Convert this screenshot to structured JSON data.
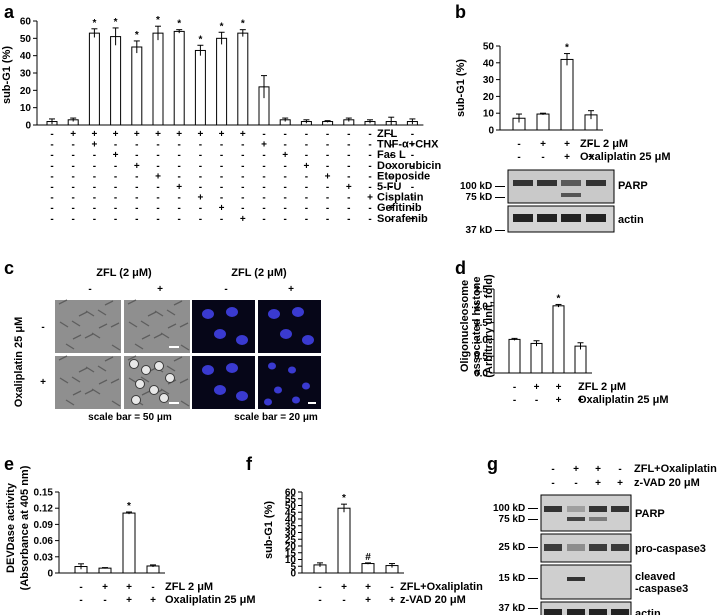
{
  "panels": {
    "a": {
      "letter": "a"
    },
    "b": {
      "letter": "b"
    },
    "c": {
      "letter": "c"
    },
    "d": {
      "letter": "d"
    },
    "e": {
      "letter": "e"
    },
    "f": {
      "letter": "f"
    },
    "g": {
      "letter": "g"
    }
  },
  "chart_data": [
    {
      "id": "a",
      "type": "bar",
      "ylabel": "sub-G1 (%)",
      "ylim": [
        0,
        60
      ],
      "yticks": [
        0,
        10,
        20,
        30,
        40,
        50,
        60
      ],
      "values": [
        2,
        3,
        53,
        51,
        45,
        53,
        54,
        43,
        50,
        53,
        22,
        3,
        2,
        2,
        3,
        2,
        2,
        2
      ],
      "errors": [
        1.5,
        1,
        2.5,
        5,
        3.5,
        4,
        1,
        3,
        3.5,
        2,
        6.5,
        1,
        1,
        0.5,
        1,
        1,
        2.5,
        1.5
      ],
      "stars": [
        false,
        false,
        true,
        true,
        true,
        true,
        true,
        true,
        true,
        true,
        false,
        false,
        false,
        false,
        false,
        false,
        false,
        false
      ],
      "star_symbol": "*",
      "rows": [
        {
          "label": "ZFL",
          "signs": [
            "-",
            "+",
            "+",
            "+",
            "+",
            "+",
            "+",
            "+",
            "+",
            "+",
            "-",
            "-",
            "-",
            "-",
            "-",
            "-",
            "-",
            "-"
          ]
        },
        {
          "label": "TNF-α+CHX",
          "signs": [
            "-",
            "-",
            "+",
            "-",
            "-",
            "-",
            "-",
            "-",
            "-",
            "-",
            "+",
            "-",
            "-",
            "-",
            "-",
            "-",
            "-",
            "-"
          ]
        },
        {
          "label": "Fas L",
          "signs": [
            "-",
            "-",
            "-",
            "+",
            "-",
            "-",
            "-",
            "-",
            "-",
            "-",
            "-",
            "+",
            "-",
            "-",
            "-",
            "-",
            "-",
            "-"
          ]
        },
        {
          "label": "Doxorubicin",
          "signs": [
            "-",
            "-",
            "-",
            "-",
            "+",
            "-",
            "-",
            "-",
            "-",
            "-",
            "-",
            "-",
            "+",
            "-",
            "-",
            "-",
            "-",
            "-"
          ]
        },
        {
          "label": "Etoposide",
          "signs": [
            "-",
            "-",
            "-",
            "-",
            "-",
            "+",
            "-",
            "-",
            "-",
            "-",
            "-",
            "-",
            "-",
            "+",
            "-",
            "-",
            "-",
            "-"
          ]
        },
        {
          "label": "5-FU",
          "signs": [
            "-",
            "-",
            "-",
            "-",
            "-",
            "-",
            "+",
            "-",
            "-",
            "-",
            "-",
            "-",
            "-",
            "-",
            "+",
            "-",
            "-",
            "-"
          ]
        },
        {
          "label": "Cisplatin",
          "signs": [
            "-",
            "-",
            "-",
            "-",
            "-",
            "-",
            "-",
            "+",
            "-",
            "-",
            "-",
            "-",
            "-",
            "-",
            "-",
            "+",
            "-",
            "-"
          ]
        },
        {
          "label": "Gefitinib",
          "signs": [
            "-",
            "-",
            "-",
            "-",
            "-",
            "-",
            "-",
            "-",
            "+",
            "-",
            "-",
            "-",
            "-",
            "-",
            "-",
            "-",
            "+",
            "-"
          ]
        },
        {
          "label": "Sorafenib",
          "signs": [
            "-",
            "-",
            "-",
            "-",
            "-",
            "-",
            "-",
            "-",
            "-",
            "+",
            "-",
            "-",
            "-",
            "-",
            "-",
            "-",
            "-",
            "+"
          ]
        }
      ]
    },
    {
      "id": "b",
      "type": "bar",
      "ylabel": "sub-G1 (%)",
      "ylim": [
        0,
        50
      ],
      "yticks": [
        0,
        10,
        20,
        30,
        40,
        50
      ],
      "values": [
        7,
        9.5,
        42,
        9
      ],
      "errors": [
        2.5,
        0.5,
        3.5,
        2.5
      ],
      "stars": [
        false,
        false,
        true,
        false
      ],
      "star_symbol": "*",
      "rows": [
        {
          "label": "ZFL 2 μM",
          "signs": [
            "-",
            "+",
            "+",
            "-"
          ]
        },
        {
          "label": "Oxaliplatin 25 μM",
          "signs": [
            "-",
            "-",
            "+",
            "+"
          ]
        }
      ]
    },
    {
      "id": "d",
      "type": "bar",
      "ylabel": "Oligonucleosome associated histone (Arbitrary unit, fold)",
      "ylim": [
        0,
        2.5
      ],
      "yticks": [
        "0.0",
        "0.5",
        "1.0",
        "1.5",
        "2.0",
        "2.5"
      ],
      "values": [
        1.0,
        0.88,
        2.0,
        0.8
      ],
      "errors": [
        0.03,
        0.08,
        0.04,
        0.1
      ],
      "stars": [
        false,
        false,
        true,
        false
      ],
      "star_symbol": "*",
      "rows": [
        {
          "label": "ZFL 2 μM",
          "signs": [
            "-",
            "+",
            "+",
            "-"
          ]
        },
        {
          "label": "Oxaliplatin 25 μM",
          "signs": [
            "-",
            "-",
            "+",
            "+"
          ]
        }
      ]
    },
    {
      "id": "e",
      "type": "bar",
      "ylabel": "DEVDase activity (Absorbance at 405 nm)",
      "ylim": [
        0,
        0.15
      ],
      "yticks": [
        "0",
        "0.03",
        "0.06",
        "0.09",
        "0.12",
        "0.15"
      ],
      "values": [
        0.012,
        0.009,
        0.111,
        0.013
      ],
      "errors": [
        0.005,
        0.001,
        0.002,
        0.002
      ],
      "stars": [
        false,
        false,
        true,
        false
      ],
      "star_symbol": "*",
      "rows": [
        {
          "label": "ZFL 2 μM",
          "signs": [
            "-",
            "+",
            "+",
            "-"
          ]
        },
        {
          "label": "Oxaliplatin 25 μM",
          "signs": [
            "-",
            "-",
            "+",
            "+"
          ]
        }
      ]
    },
    {
      "id": "f",
      "type": "bar",
      "ylabel": "sub-G1 (%)",
      "ylim": [
        0,
        60
      ],
      "yticks": [
        0,
        5,
        10,
        15,
        20,
        25,
        30,
        35,
        40,
        45,
        50,
        55,
        60
      ],
      "values": [
        6,
        48,
        7,
        5.5
      ],
      "errors": [
        1.5,
        3,
        0.5,
        1.5
      ],
      "marks": [
        "",
        "*",
        "#",
        ""
      ],
      "rows": [
        {
          "label": "ZFL+Oxaliplatin",
          "signs": [
            "-",
            "+",
            "+",
            "-"
          ]
        },
        {
          "label": "z-VAD 20 μM",
          "signs": [
            "-",
            "-",
            "+",
            "+"
          ]
        }
      ]
    }
  ],
  "blot_b": {
    "bands": [
      "PARP",
      "actin"
    ],
    "markers": [
      "100 kD",
      "75 kD",
      "37 kD"
    ]
  },
  "blot_g": {
    "header_rows": [
      {
        "label": "ZFL+Oxaliplatin",
        "signs": [
          "-",
          "+",
          "+",
          "-"
        ]
      },
      {
        "label": "z-VAD 20 μM",
        "signs": [
          "-",
          "-",
          "+",
          "+"
        ]
      }
    ],
    "bands": [
      "PARP",
      "pro-caspase3",
      "cleaved\n-caspase3",
      "actin"
    ],
    "band_lines": [
      [
        "PARP"
      ],
      [
        "pro-caspase3"
      ],
      [
        "cleaved",
        "-caspase3"
      ],
      [
        "actin"
      ]
    ],
    "markers": [
      "100 kD",
      "75 kD",
      "25 kD",
      "15 kD",
      "37 kD"
    ]
  },
  "micro_c": {
    "left_header": "ZFL (2 μM)",
    "right_header": "ZFL (2 μM)",
    "col_signs": [
      "-",
      "+"
    ],
    "row_label": "Oxaliplatin 25 μM",
    "row_signs": [
      "-",
      "+"
    ],
    "scale_left": "scale bar = 50 μm",
    "scale_right": "scale bar = 20 μm"
  }
}
